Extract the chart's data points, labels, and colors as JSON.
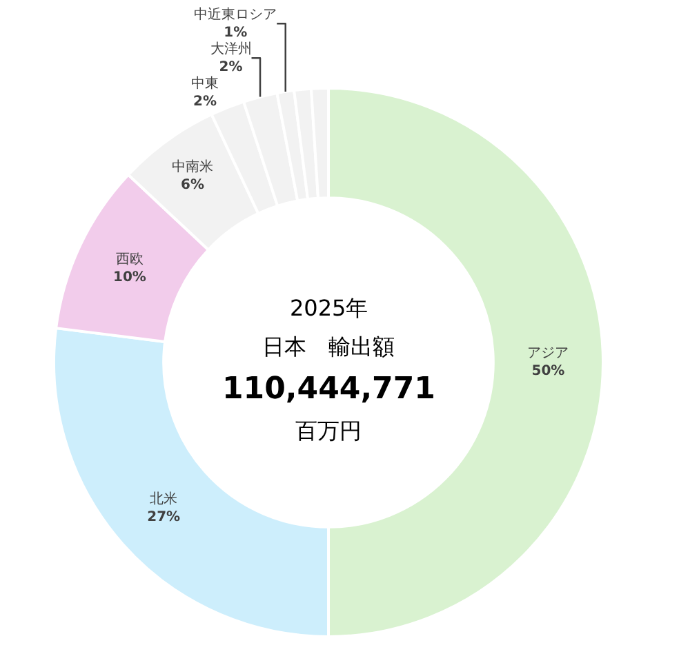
{
  "chart_data": {
    "type": "donut",
    "categories": [
      "アジア",
      "北米",
      "西欧",
      "中南米",
      "中東",
      "大洋州",
      "中近東ロシア",
      null,
      null
    ],
    "values": [
      50,
      27,
      10,
      6,
      2,
      2,
      1,
      1,
      1
    ],
    "colors": [
      "#d9f2d0",
      "#cdeefc",
      "#f2cceb",
      "#f2f2f2",
      "#f2f2f2",
      "#f2f2f2",
      "#f2f2f2",
      "#f2f2f2",
      "#f2f2f2"
    ],
    "value_labels": [
      "50%",
      "27%",
      "10%",
      "6%",
      "2%",
      "2%",
      "1%",
      null,
      null
    ],
    "annotations": [
      "2025年",
      "日本　輸出額",
      "110,444,771",
      "百万円"
    ]
  }
}
